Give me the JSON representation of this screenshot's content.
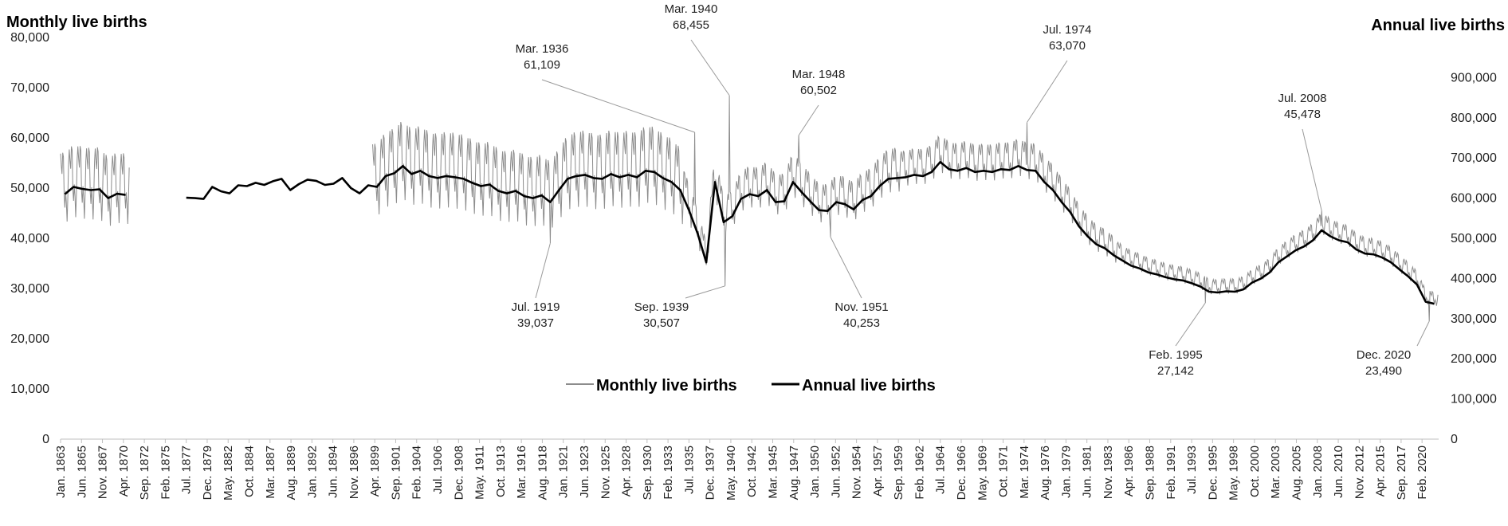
{
  "chart_data": {
    "type": "line",
    "title": "",
    "ylabel": "Monthly live births",
    "y2label": "Annual live births",
    "ylim": [
      0,
      80000
    ],
    "y2lim": [
      0,
      1000000
    ],
    "y_ticks": [
      "0",
      "10,000",
      "20,000",
      "30,000",
      "40,000",
      "50,000",
      "60,000",
      "70,000",
      "80,000"
    ],
    "y2_ticks": [
      "0",
      "100,000",
      "200,000",
      "300,000",
      "400,000",
      "500,000",
      "600,000",
      "700,000",
      "800,000",
      "900,000"
    ],
    "x_ticks": [
      "Jan. 1863",
      "Jun. 1865",
      "Nov. 1867",
      "Apr. 1870",
      "Sep. 1872",
      "Feb. 1875",
      "Jul. 1877",
      "Dec. 1879",
      "May. 1882",
      "Oct. 1884",
      "Mar. 1887",
      "Aug. 1889",
      "Jan. 1892",
      "Jun. 1894",
      "Nov. 1896",
      "Apr. 1899",
      "Sep. 1901",
      "Feb. 1904",
      "Jul. 1906",
      "Dec. 1908",
      "May. 1911",
      "Oct. 1913",
      "Mar. 1916",
      "Aug. 1918",
      "Jan. 1921",
      "Jun. 1923",
      "Nov. 1925",
      "Apr. 1928",
      "Sep. 1930",
      "Feb. 1933",
      "Jul. 1935",
      "Dec. 1937",
      "May. 1940",
      "Oct. 1942",
      "Mar. 1945",
      "Aug. 1947",
      "Jan. 1950",
      "Jun. 1952",
      "Nov. 1954",
      "Apr. 1957",
      "Sep. 1959",
      "Feb. 1962",
      "Jul. 1964",
      "Dec. 1966",
      "May. 1969",
      "Oct. 1971",
      "Mar. 1974",
      "Aug. 1976",
      "Jan. 1979",
      "Jun. 1981",
      "Nov. 1983",
      "Apr. 1986",
      "Sep. 1988",
      "Feb. 1991",
      "Jul. 1993",
      "Dec. 1995",
      "May. 1998",
      "Oct. 2000",
      "Mar. 2003",
      "Aug. 2005",
      "Jan. 2008",
      "Jun. 2010",
      "Nov. 2012",
      "Apr. 2015",
      "Sep. 2017",
      "Feb. 2020"
    ],
    "x_range": [
      "1863-01",
      "2021-12"
    ],
    "legend": {
      "placement": "bottom-center",
      "entries": [
        "Monthly live births",
        "Annual live births"
      ]
    },
    "grid": false,
    "series": [
      {
        "name": "Annual live births",
        "axis": "right",
        "color": "#000000",
        "years": [
          1863,
          1864,
          1865,
          1866,
          1867,
          1868,
          1869,
          1870,
          1877,
          1878,
          1879,
          1880,
          1881,
          1882,
          1883,
          1884,
          1885,
          1886,
          1887,
          1888,
          1889,
          1890,
          1891,
          1892,
          1893,
          1894,
          1895,
          1896,
          1897,
          1898,
          1899,
          1900,
          1901,
          1902,
          1903,
          1904,
          1905,
          1906,
          1907,
          1908,
          1909,
          1910,
          1911,
          1912,
          1913,
          1914,
          1915,
          1916,
          1917,
          1918,
          1919,
          1920,
          1921,
          1922,
          1923,
          1924,
          1925,
          1926,
          1927,
          1928,
          1929,
          1930,
          1931,
          1932,
          1933,
          1934,
          1935,
          1936,
          1937,
          1938,
          1939,
          1940,
          1941,
          1942,
          1943,
          1944,
          1945,
          1946,
          1947,
          1948,
          1949,
          1950,
          1951,
          1952,
          1953,
          1954,
          1955,
          1956,
          1957,
          1958,
          1959,
          1960,
          1961,
          1962,
          1963,
          1964,
          1965,
          1966,
          1967,
          1968,
          1969,
          1970,
          1971,
          1972,
          1973,
          1974,
          1975,
          1976,
          1977,
          1978,
          1979,
          1980,
          1981,
          1982,
          1983,
          1984,
          1985,
          1986,
          1987,
          1988,
          1989,
          1990,
          1991,
          1992,
          1993,
          1994,
          1995,
          1996,
          1997,
          1998,
          1999,
          2000,
          2001,
          2002,
          2003,
          2004,
          2005,
          2006,
          2007,
          2008,
          2009,
          2010,
          2011,
          2012,
          2013,
          2014,
          2015,
          2016,
          2017,
          2018,
          2019,
          2020,
          2021
        ],
        "values": [
          610000,
          628000,
          623000,
          620000,
          622000,
          600000,
          611000,
          608000,
          601000,
          600000,
          598000,
          628000,
          617000,
          612000,
          632000,
          630000,
          638000,
          633000,
          642000,
          648000,
          620000,
          635000,
          646000,
          643000,
          633000,
          636000,
          650000,
          625000,
          612000,
          632000,
          628000,
          655000,
          662000,
          680000,
          660000,
          668000,
          655000,
          650000,
          655000,
          652000,
          648000,
          638000,
          630000,
          634000,
          618000,
          612000,
          618000,
          605000,
          600000,
          607000,
          590000,
          620000,
          648000,
          655000,
          658000,
          650000,
          648000,
          660000,
          652000,
          658000,
          652000,
          668000,
          665000,
          650000,
          640000,
          620000,
          570000,
          512000,
          440000,
          640000,
          540000,
          555000,
          598000,
          610000,
          605000,
          620000,
          590000,
          592000,
          640000,
          615000,
          592000,
          570000,
          568000,
          590000,
          585000,
          572000,
          595000,
          605000,
          630000,
          648000,
          650000,
          652000,
          658000,
          655000,
          665000,
          690000,
          672000,
          668000,
          675000,
          665000,
          668000,
          665000,
          672000,
          670000,
          680000,
          670000,
          668000,
          640000,
          620000,
          590000,
          565000,
          530000,
          505000,
          485000,
          475000,
          458000,
          445000,
          432000,
          425000,
          415000,
          410000,
          403000,
          398000,
          395000,
          388000,
          380000,
          367000,
          365000,
          368000,
          367000,
          373000,
          390000,
          400000,
          415000,
          440000,
          455000,
          470000,
          480000,
          495000,
          520000,
          505000,
          495000,
          490000,
          472000,
          462000,
          460000,
          452000,
          440000,
          422000,
          405000,
          385000,
          342000,
          337000
        ]
      },
      {
        "name": "Monthly live births",
        "axis": "left",
        "color": "#8c8c8c",
        "note": "monthly values oscillate seasonally around annual average / 12; early data 1863-1870 and 1899-2021",
        "periods": [
          [
            "1863-01",
            "1870-12"
          ],
          [
            "1899-01",
            "2021-12"
          ]
        ]
      }
    ],
    "annotations": [
      {
        "date_label": "Mar. 1936",
        "value": "61,109",
        "date": "1936-03",
        "y": 61109
      },
      {
        "date_label": "Mar. 1940",
        "value": "68,455",
        "date": "1940-03",
        "y": 68455
      },
      {
        "date_label": "Mar. 1948",
        "value": "60,502",
        "date": "1948-03",
        "y": 60502
      },
      {
        "date_label": "Jul. 1974",
        "value": "63,070",
        "date": "1974-07",
        "y": 63070
      },
      {
        "date_label": "Jul. 2008",
        "value": "45,478",
        "date": "2008-07",
        "y": 45478
      },
      {
        "date_label": "Jul. 1919",
        "value": "39,037",
        "date": "1919-07",
        "y": 39037
      },
      {
        "date_label": "Sep. 1939",
        "value": "30,507",
        "date": "1939-09",
        "y": 30507
      },
      {
        "date_label": "Nov. 1951",
        "value": "40,253",
        "date": "1951-11",
        "y": 40253
      },
      {
        "date_label": "Feb. 1995",
        "value": "27,142",
        "date": "1995-02",
        "y": 27142
      },
      {
        "date_label": "Dec. 2020",
        "value": "23,490",
        "date": "2020-12",
        "y": 23490
      }
    ]
  }
}
